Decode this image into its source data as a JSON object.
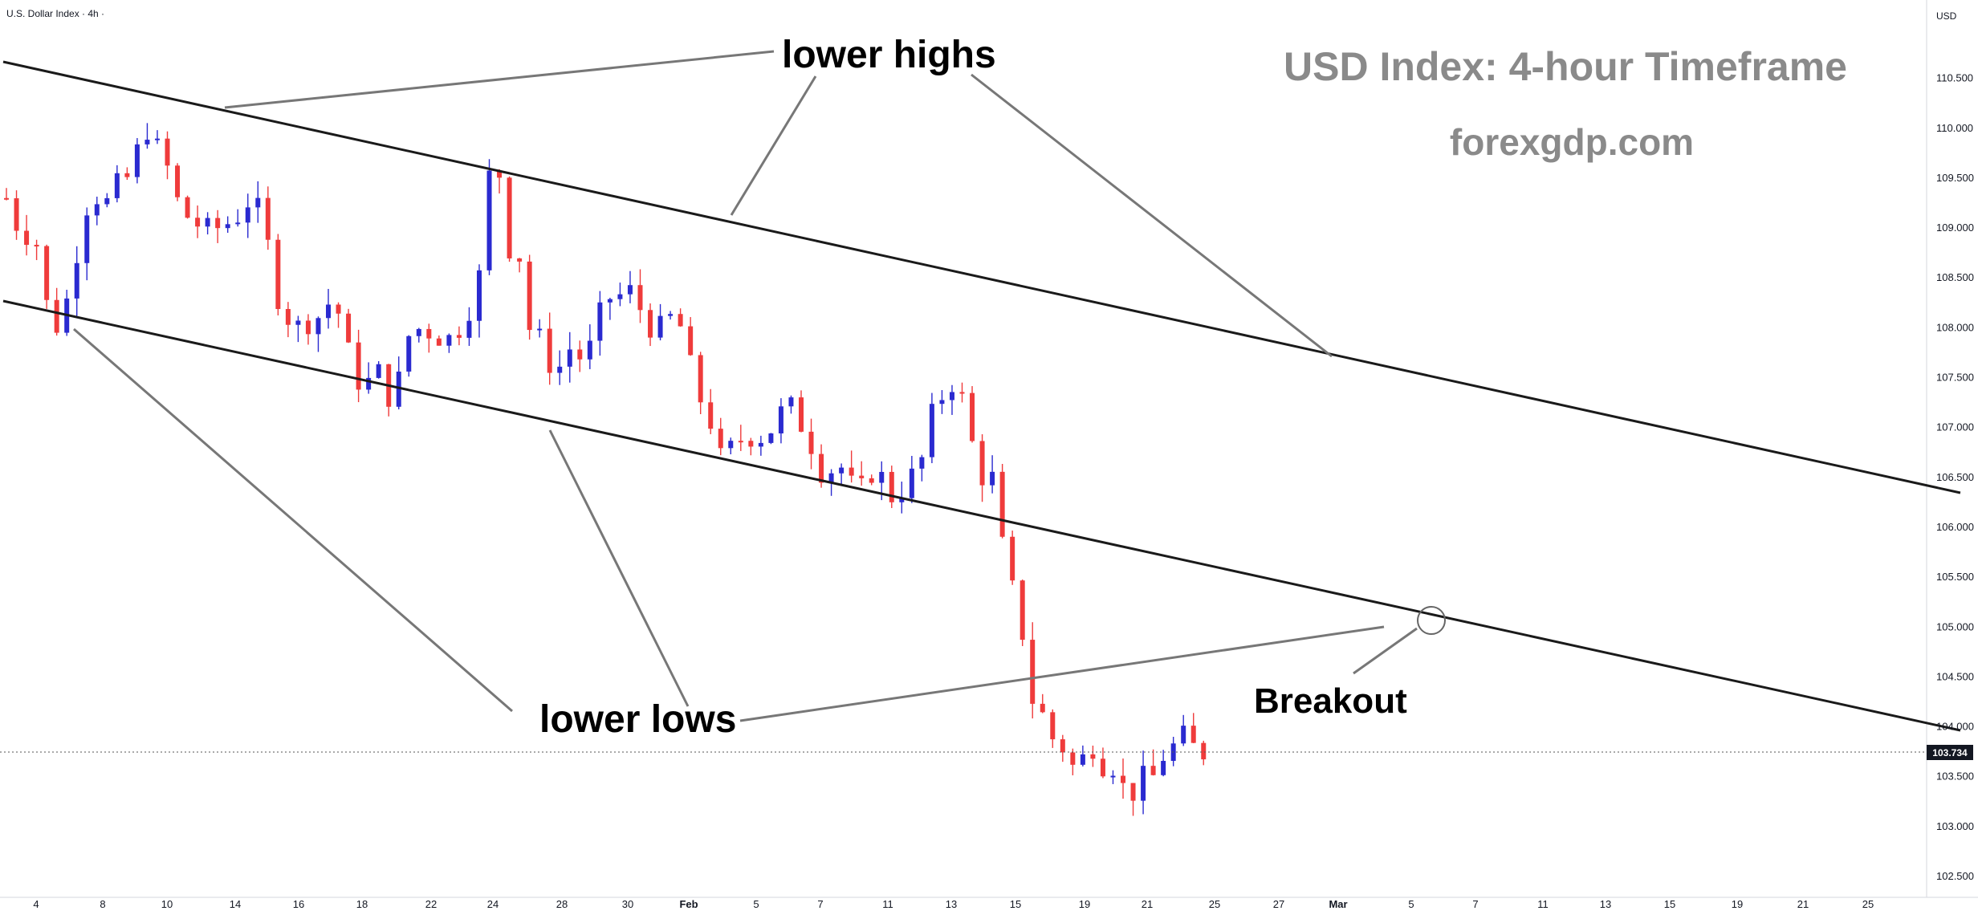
{
  "symbol": "U.S. Dollar Index · 4h ·",
  "currency": "USD",
  "watermark": {
    "title": "USD Index: 4-hour Timeframe",
    "site": "forexgdp.com"
  },
  "annotations": {
    "lower_highs": "lower highs",
    "lower_lows": "lower lows",
    "breakout": "Breakout"
  },
  "colors": {
    "up": "#2a2ad0",
    "down": "#ef3b3b",
    "trendline": "#1a1a1a",
    "pointer": "#777777",
    "price_tag_bg": "#131722",
    "watermark": "#8a8a8a"
  },
  "chart_data": {
    "type": "candlestick",
    "title": "",
    "ylim": [
      102.3,
      111.5
    ],
    "y_ticks": [
      "102.500",
      "103.000",
      "103.500",
      "104.000",
      "104.500",
      "105.000",
      "105.500",
      "106.000",
      "106.500",
      "107.000",
      "107.500",
      "108.000",
      "108.500",
      "109.000",
      "109.500",
      "110.000",
      "110.500"
    ],
    "x_ticks": [
      "4",
      "8",
      "10",
      "14",
      "16",
      "18",
      "22",
      "24",
      "28",
      "30",
      "Feb",
      "5",
      "7",
      "11",
      "13",
      "15",
      "19",
      "21",
      "25",
      "27",
      "Mar",
      "5",
      "7",
      "11",
      "13",
      "15",
      "19",
      "21",
      "25"
    ],
    "last_price": "103.734",
    "trend": "descending channel with downside breakout",
    "close_path": [
      [
        0,
        109.3
      ],
      [
        0.8,
        109.0
      ],
      [
        2.5,
        108.8
      ],
      [
        3.0,
        108.1
      ],
      [
        3.6,
        108.0
      ],
      [
        4.4,
        108.3
      ],
      [
        5.3,
        108.9
      ],
      [
        6.1,
        109.4
      ],
      [
        7.0,
        109.2
      ],
      [
        8.2,
        109.5
      ],
      [
        9.0,
        109.5
      ],
      [
        9.6,
        109.9
      ],
      [
        10.3,
        110.0
      ],
      [
        10.9,
        109.8
      ],
      [
        11.6,
        109.6
      ],
      [
        12.2,
        109.3
      ],
      [
        13.1,
        109.1
      ],
      [
        14.1,
        109.0
      ],
      [
        15.3,
        109.0
      ],
      [
        16.6,
        109.1
      ],
      [
        17.6,
        109.3
      ],
      [
        18.6,
        109.1
      ],
      [
        19.2,
        108.4
      ],
      [
        20.2,
        108.1
      ],
      [
        21.2,
        108.0
      ],
      [
        22.4,
        108.1
      ],
      [
        23.5,
        108.3
      ],
      [
        24.3,
        108.0
      ],
      [
        25.0,
        107.5
      ],
      [
        25.8,
        107.4
      ],
      [
        26.7,
        107.6
      ],
      [
        27.5,
        107.3
      ],
      [
        28.0,
        107.3
      ],
      [
        28.8,
        107.9
      ],
      [
        29.8,
        108.0
      ],
      [
        31.1,
        107.9
      ],
      [
        32.0,
        107.9
      ],
      [
        32.7,
        108.0
      ],
      [
        33.4,
        108.2
      ],
      [
        34.2,
        108.6
      ],
      [
        34.6,
        109.4
      ],
      [
        35.0,
        109.7
      ],
      [
        35.6,
        109.5
      ],
      [
        36.1,
        108.8
      ],
      [
        37.0,
        108.7
      ],
      [
        37.6,
        108.0
      ],
      [
        38.4,
        107.9
      ],
      [
        39.2,
        107.6
      ],
      [
        39.8,
        107.6
      ],
      [
        40.6,
        107.8
      ],
      [
        41.3,
        107.7
      ],
      [
        42.0,
        107.8
      ],
      [
        42.6,
        108.1
      ],
      [
        43.2,
        108.3
      ],
      [
        44.0,
        108.3
      ],
      [
        44.8,
        108.4
      ],
      [
        45.6,
        108.2
      ],
      [
        46.3,
        108.0
      ],
      [
        47.0,
        108.0
      ],
      [
        47.8,
        108.1
      ],
      [
        48.6,
        108.0
      ],
      [
        49.3,
        107.6
      ],
      [
        49.9,
        107.3
      ],
      [
        50.6,
        107.1
      ],
      [
        51.4,
        106.7
      ],
      [
        52.2,
        106.8
      ],
      [
        53.0,
        106.9
      ],
      [
        53.9,
        106.9
      ],
      [
        54.7,
        106.9
      ],
      [
        55.6,
        107.1
      ],
      [
        56.2,
        107.3
      ],
      [
        56.9,
        107.1
      ],
      [
        57.7,
        106.9
      ],
      [
        58.3,
        106.7
      ],
      [
        58.8,
        106.5
      ],
      [
        59.6,
        106.6
      ],
      [
        60.4,
        106.6
      ],
      [
        61.2,
        106.3
      ],
      [
        62.0,
        106.5
      ],
      [
        62.8,
        106.6
      ],
      [
        63.5,
        106.3
      ],
      [
        64.2,
        106.3
      ],
      [
        65.0,
        106.5
      ],
      [
        65.8,
        106.6
      ],
      [
        66.5,
        107.1
      ],
      [
        67.3,
        107.3
      ],
      [
        67.9,
        107.4
      ],
      [
        68.4,
        107.5
      ],
      [
        69.0,
        107.2
      ],
      [
        69.6,
        106.8
      ],
      [
        70.2,
        106.5
      ],
      [
        71.0,
        106.5
      ],
      [
        71.6,
        105.9
      ],
      [
        72.2,
        105.5
      ],
      [
        72.8,
        105.2
      ],
      [
        73.2,
        104.9
      ],
      [
        73.6,
        104.3
      ],
      [
        74.4,
        104.2
      ],
      [
        75.2,
        103.9
      ],
      [
        76.0,
        103.8
      ],
      [
        76.8,
        103.6
      ],
      [
        77.6,
        103.7
      ],
      [
        78.3,
        103.8
      ],
      [
        79.0,
        103.6
      ],
      [
        79.8,
        103.6
      ],
      [
        80.4,
        103.4
      ],
      [
        81.0,
        103.3
      ],
      [
        81.8,
        103.5
      ],
      [
        82.6,
        103.5
      ],
      [
        83.3,
        103.7
      ],
      [
        84.0,
        103.8
      ],
      [
        84.6,
        103.9
      ],
      [
        85.2,
        103.95
      ],
      [
        85.6,
        103.73
      ],
      [
        86.2,
        103.73
      ]
    ],
    "swing_points": {
      "lower_highs": [
        [
          11.1,
          110.1
        ],
        [
          37.8,
          109.0
        ],
        [
          68.9,
          107.6
        ]
      ],
      "lower_lows": [
        [
          3.6,
          107.9
        ],
        [
          28.3,
          106.95
        ],
        [
          73.4,
          105.0
        ]
      ]
    }
  }
}
